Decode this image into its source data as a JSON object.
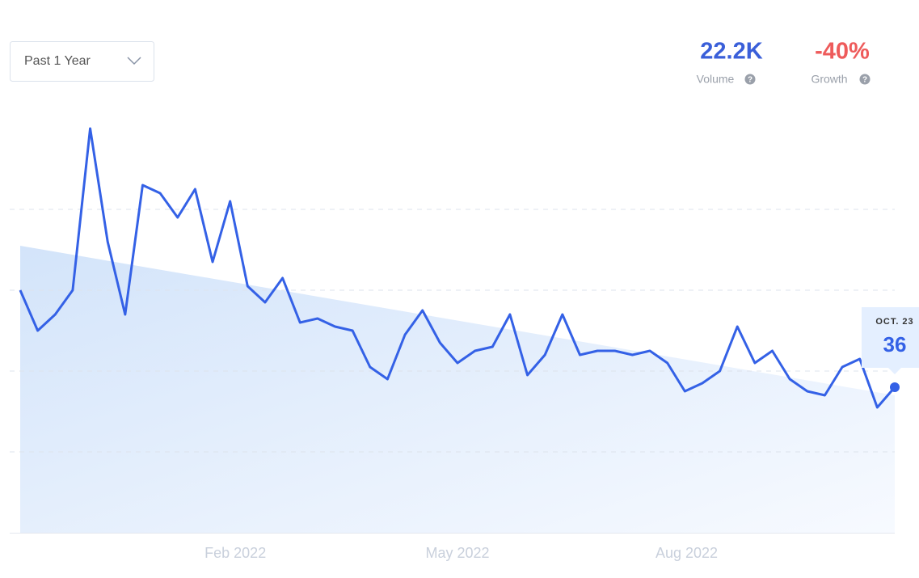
{
  "filter": {
    "label": "Past 1 Year"
  },
  "stats": [
    {
      "value": "22.2K",
      "label": "Volume"
    },
    {
      "value": "-40%",
      "label": "Growth"
    }
  ],
  "chart_data": {
    "type": "line",
    "categories": [
      null,
      null,
      null,
      null,
      null,
      null,
      null,
      null,
      null,
      null,
      null,
      null,
      null,
      null,
      null,
      null,
      null,
      null,
      null,
      null,
      null,
      null,
      null,
      null,
      null,
      null,
      null,
      null,
      null,
      null,
      null,
      null,
      null,
      null,
      null,
      null,
      null,
      null,
      null,
      null,
      null,
      null,
      null,
      null,
      null,
      null,
      null,
      null,
      null,
      null,
      "OCT. 23"
    ],
    "values": [
      60,
      50,
      54,
      60,
      100,
      72,
      54,
      86,
      84,
      78,
      85,
      67,
      82,
      61,
      57,
      63,
      52,
      53,
      51,
      50,
      41,
      38,
      49,
      55,
      47,
      42,
      45,
      46,
      54,
      39,
      44,
      54,
      44,
      45,
      45,
      44,
      45,
      42,
      35,
      37,
      40,
      51,
      42,
      45,
      38,
      35,
      34,
      41,
      43,
      31,
      36
    ],
    "color": "#3461e6",
    "trend": [
      71,
      34
    ],
    "xlim": [
      0,
      50
    ],
    "xticks": [
      {
        "value": 12.3,
        "label": "Feb 2022"
      },
      {
        "value": 25,
        "label": "May 2022"
      },
      {
        "value": 38.1,
        "label": "Aug 2022"
      }
    ],
    "ylim": [
      0,
      100
    ],
    "yticks": [
      20,
      40,
      60,
      80
    ],
    "grid": true
  }
}
